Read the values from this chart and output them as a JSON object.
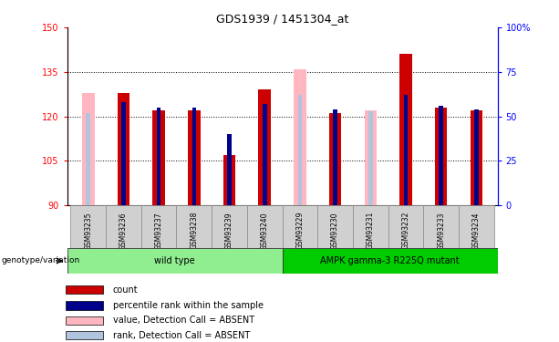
{
  "title": "GDS1939 / 1451304_at",
  "samples": [
    "GSM93235",
    "GSM93236",
    "GSM93237",
    "GSM93238",
    "GSM93239",
    "GSM93240",
    "GSM93229",
    "GSM93230",
    "GSM93231",
    "GSM93232",
    "GSM93233",
    "GSM93234"
  ],
  "count_values": [
    128,
    128,
    122,
    122,
    107,
    129,
    136,
    121,
    122,
    141,
    123,
    122
  ],
  "percentile_values": [
    52,
    58,
    55,
    55,
    40,
    57,
    62,
    54,
    53,
    62,
    56,
    54
  ],
  "absent_mask": [
    true,
    false,
    false,
    false,
    false,
    false,
    true,
    false,
    true,
    false,
    false,
    false
  ],
  "ylim_left": [
    90,
    150
  ],
  "ylim_right": [
    0,
    100
  ],
  "yticks_left": [
    90,
    105,
    120,
    135,
    150
  ],
  "yticks_right": [
    0,
    25,
    50,
    75,
    100
  ],
  "ytick_right_labels": [
    "0",
    "25",
    "50",
    "75",
    "100%"
  ],
  "grid_lines": [
    105,
    120,
    135
  ],
  "groups": [
    {
      "label": "wild type",
      "start": 0,
      "end": 6,
      "color": "#90ee90"
    },
    {
      "label": "AMPK gamma-3 R225Q mutant",
      "start": 6,
      "end": 12,
      "color": "#00cc00"
    }
  ],
  "count_bar_width": 0.35,
  "pct_bar_width": 0.12,
  "count_color": "#cc0000",
  "percentile_color": "#00008b",
  "absent_count_color": "#ffb6c1",
  "absent_percentile_color": "#b0c4de",
  "background_color": "#ffffff",
  "genotype_label": "genotype/variation",
  "legend_items": [
    {
      "label": "count",
      "color": "#cc0000"
    },
    {
      "label": "percentile rank within the sample",
      "color": "#00008b"
    },
    {
      "label": "value, Detection Call = ABSENT",
      "color": "#ffb6c1"
    },
    {
      "label": "rank, Detection Call = ABSENT",
      "color": "#b0c4de"
    }
  ]
}
